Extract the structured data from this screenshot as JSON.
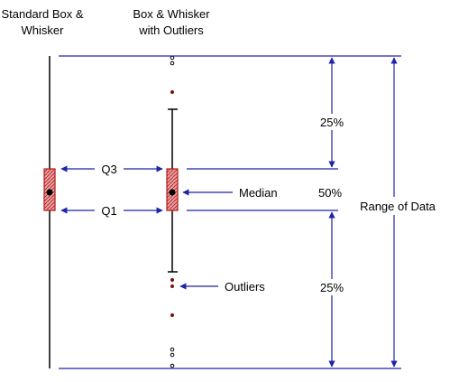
{
  "titles": {
    "standard_line1": "Standard Box &",
    "standard_line2": "Whisker",
    "outliers_line1": "Box & Whisker",
    "outliers_line2": "with Outliers"
  },
  "labels": {
    "q3": "Q3",
    "q1": "Q1",
    "median": "Median",
    "outliers": "Outliers",
    "range": "Range of Data",
    "pct_top": "25%",
    "pct_middle": "50%",
    "pct_bottom": "25%"
  },
  "colors": {
    "line": "#000000",
    "arrow": "#1f24a8",
    "box_fill": "#e8a0a0",
    "box_stroke": "#b01818",
    "outlier": "#7a1010"
  }
}
